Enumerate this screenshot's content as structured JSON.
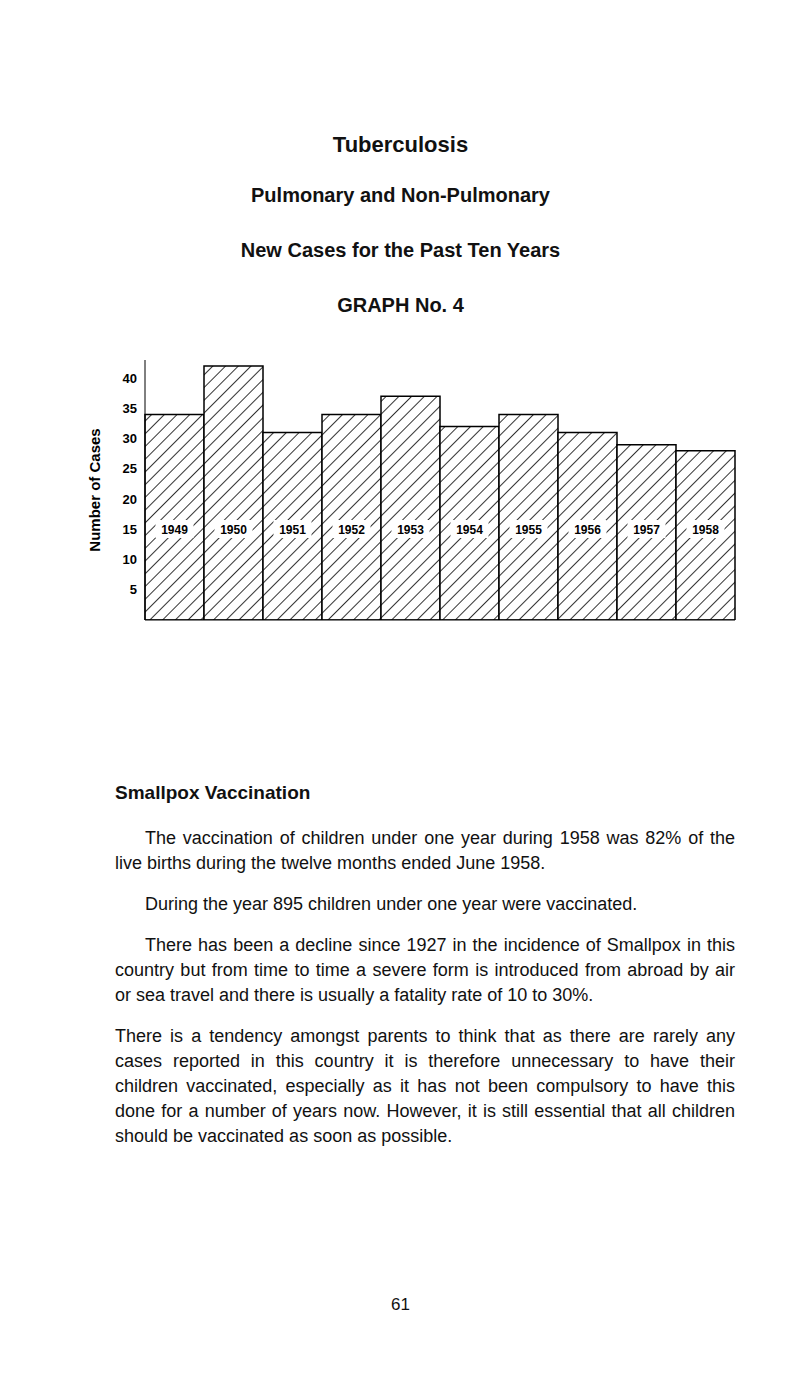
{
  "header": [
    "Tuberculosis",
    "Pulmonary and Non-Pulmonary",
    "New Cases for the Past Ten Years"
  ],
  "chart_data": {
    "type": "bar",
    "title": "GRAPH No. 4",
    "y_label": "Number of Cases",
    "categories": [
      "1949",
      "1950",
      "1951",
      "1952",
      "1953",
      "1954",
      "1955",
      "1956",
      "1957",
      "1958"
    ],
    "values": [
      34,
      42,
      31,
      34,
      37,
      32,
      34,
      31,
      29,
      28
    ],
    "color": "#000000",
    "ylim": [
      0,
      43
    ],
    "yticks": [
      5,
      10,
      15,
      20,
      25,
      30,
      35,
      40
    ],
    "grid": false,
    "tick_labels": "y"
  },
  "section": {
    "title": "Smallpox Vaccination",
    "paragraphs": [
      "The vaccination of children under one year during 1958 was 82% of the live births during the twelve months ended June 1958.",
      "During the year 895 children under one year were vaccinated.",
      "There has been a decline since 1927 in the incidence of Smallpox in this country but from time to time a severe form is introduced from abroad by air or sea travel and there is usually a fatality rate of 10 to 30%.",
      "There is a tendency amongst parents to think that as there are rarely any cases reported in this country it is therefore unnecessary to have their children vaccinated, especially as it has not been compulsory to have this done for a number of years now. However, it is still essential that all children should be vaccinated as soon as possible."
    ]
  },
  "page_number": "61"
}
